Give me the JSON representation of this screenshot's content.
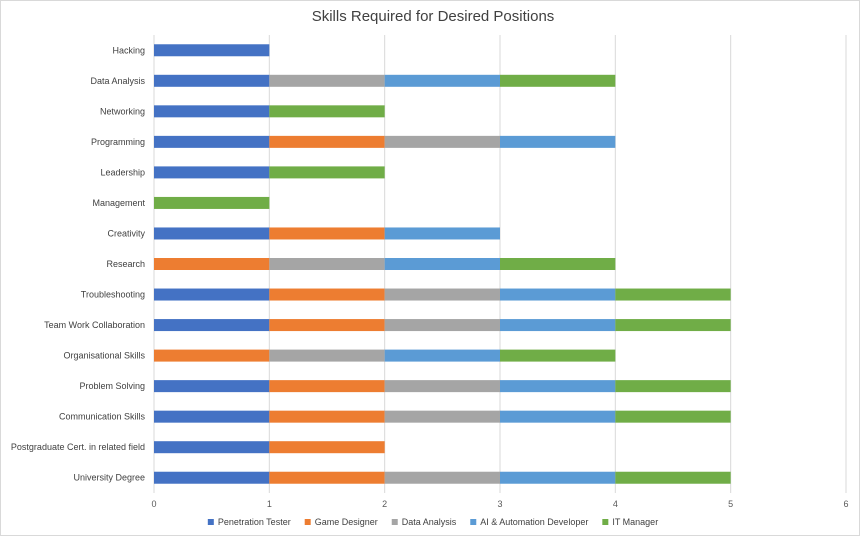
{
  "chart_data": {
    "type": "bar",
    "orientation": "horizontal",
    "stacked": true,
    "title": "Skills Required for Desired Positions",
    "xlabel": "",
    "ylabel": "",
    "xlim": [
      0,
      6
    ],
    "x_ticks": [
      "0",
      "1",
      "2",
      "3",
      "4",
      "5",
      "6"
    ],
    "grid": "vertical",
    "legend_position": "bottom",
    "categories": [
      "Hacking",
      "Data Analysis",
      "Networking",
      "Programming",
      "Leadership",
      "Management",
      "Creativity",
      "Research",
      "Troubleshooting",
      "Team Work Collaboration",
      "Organisational Skills",
      "Problem Solving",
      "Communication Skills",
      "Postgraduate Cert. in related field",
      "University Degree"
    ],
    "series": [
      {
        "name": "Penetration Tester",
        "color": "#4472c4",
        "values": [
          1,
          1,
          1,
          1,
          1,
          0,
          1,
          0,
          1,
          1,
          0,
          1,
          1,
          1,
          1
        ]
      },
      {
        "name": "Game Designer",
        "color": "#ed7d31",
        "values": [
          0,
          0,
          0,
          1,
          0,
          0,
          1,
          1,
          1,
          1,
          1,
          1,
          1,
          1,
          1
        ]
      },
      {
        "name": "Data Analysis",
        "color": "#a5a5a5",
        "values": [
          0,
          1,
          0,
          1,
          0,
          0,
          0,
          1,
          1,
          1,
          1,
          1,
          1,
          0,
          1
        ]
      },
      {
        "name": "AI & Automation Developer",
        "color": "#5b9bd5",
        "values": [
          0,
          1,
          0,
          1,
          0,
          0,
          1,
          1,
          1,
          1,
          1,
          1,
          1,
          0,
          1
        ]
      },
      {
        "name": "IT Manager",
        "color": "#70ad47",
        "values": [
          0,
          1,
          1,
          0,
          1,
          1,
          0,
          1,
          1,
          1,
          1,
          1,
          1,
          0,
          1
        ]
      }
    ]
  }
}
